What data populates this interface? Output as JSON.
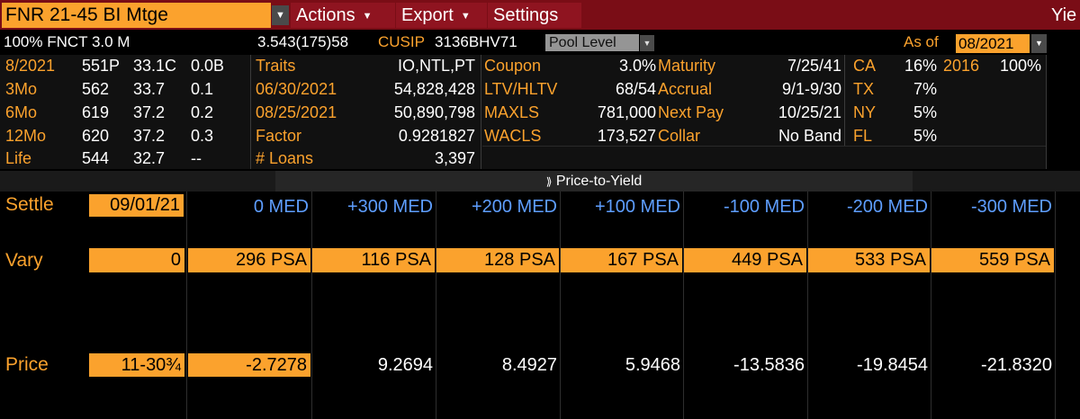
{
  "header": {
    "security": "FNR 21-45 BI Mtge",
    "menus": [
      "Actions",
      "Export",
      "Settings"
    ],
    "yield_truncated": "Yie"
  },
  "info": {
    "description": "100% FNCT 3.0 M",
    "price_code": "3.543(175)58",
    "cusip_label": "CUSIP",
    "cusip": "3136BHV71",
    "pool_level": "Pool Level",
    "as_of_label": "As of",
    "as_of": "08/2021"
  },
  "history": [
    {
      "period": "8/2021",
      "p": "551P",
      "c": "33.1C",
      "v": "0.0B"
    },
    {
      "period": "3Mo",
      "p": "562",
      "c": "33.7",
      "v": "0.1"
    },
    {
      "period": "6Mo",
      "p": "619",
      "c": "37.2",
      "v": "0.2"
    },
    {
      "period": "12Mo",
      "p": "620",
      "c": "37.2",
      "v": "0.3"
    },
    {
      "period": "Life",
      "p": "544",
      "c": "32.7",
      "v": "--"
    }
  ],
  "attributes": [
    {
      "label": "Traits",
      "value": "IO,NTL,PT"
    },
    {
      "label": "06/30/2021",
      "value": "54,828,428"
    },
    {
      "label": "08/25/2021",
      "value": "50,890,798"
    },
    {
      "label": "Factor",
      "value": "0.9281827"
    },
    {
      "label": "# Loans",
      "value": "3,397"
    }
  ],
  "loan_stats": [
    {
      "label": "Coupon",
      "value": "3.0%"
    },
    {
      "label": "LTV/HLTV",
      "value": "68/54"
    },
    {
      "label": "MAXLS",
      "value": "781,000"
    },
    {
      "label": "WACLS",
      "value": "173,527"
    }
  ],
  "terms": [
    {
      "label": "Maturity",
      "value": "7/25/41"
    },
    {
      "label": "Accrual",
      "value": "9/1-9/30"
    },
    {
      "label": "Next Pay",
      "value": "10/25/21"
    },
    {
      "label": "Collar",
      "value": "No Band"
    }
  ],
  "geo": [
    {
      "state": "CA",
      "pct": "16%"
    },
    {
      "state": "TX",
      "pct": "7%"
    },
    {
      "state": "NY",
      "pct": "5%"
    },
    {
      "state": "FL",
      "pct": "5%"
    }
  ],
  "vintage": {
    "year": "2016",
    "pct": "100%"
  },
  "banner": {
    "icon": "⟫",
    "title": "Price-to-Yield"
  },
  "grid": {
    "settle_label": "Settle",
    "settle_date": "09/01/21",
    "vary_label": "Vary",
    "vary_base": "0",
    "price_label": "Price",
    "price_input": "11-30¾",
    "scenarios": [
      {
        "header": "0 MED",
        "vary": "296 PSA",
        "price": "-2.7278"
      },
      {
        "header": "+300 MED",
        "vary": "116 PSA",
        "price": "9.2694"
      },
      {
        "header": "+200 MED",
        "vary": "128 PSA",
        "price": "8.4927"
      },
      {
        "header": "+100 MED",
        "vary": "167 PSA",
        "price": "5.9468"
      },
      {
        "header": "-100 MED",
        "vary": "449 PSA",
        "price": "-13.5836"
      },
      {
        "header": "-200 MED",
        "vary": "533 PSA",
        "price": "-19.8454"
      },
      {
        "header": "-300 MED",
        "vary": "559 PSA",
        "price": "-21.8320"
      }
    ]
  }
}
